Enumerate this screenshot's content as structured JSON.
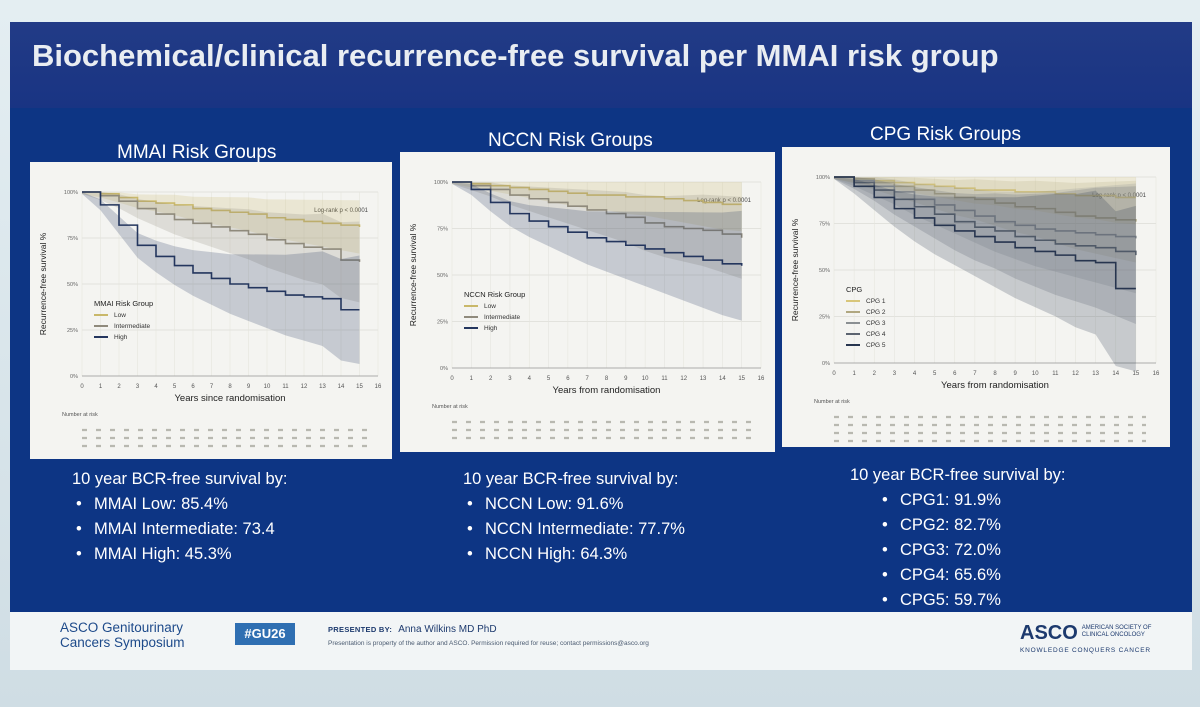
{
  "title": "Biochemical/clinical recurrence-free survival per MMAI risk group",
  "panels": [
    {
      "heading": "MMAI Risk Groups",
      "summary_head": "10 year BCR-free survival by:",
      "summary_items": [
        "MMAI Low: 85.4%",
        "MMAI Intermediate: 73.4",
        "MMAI High: 45.3%"
      ]
    },
    {
      "heading": "NCCN Risk Groups",
      "summary_head": "10 year BCR-free survival by:",
      "summary_items": [
        "NCCN Low: 91.6%",
        "NCCN Intermediate: 77.7%",
        "NCCN High: 64.3%"
      ]
    },
    {
      "heading": "CPG Risk Groups",
      "summary_head": "10 year BCR-free survival by:",
      "summary_items": [
        "CPG1: 91.9%",
        "CPG2: 82.7%",
        "CPG3: 72.0%",
        "CPG4: 65.6%",
        "CPG5: 59.7%"
      ]
    }
  ],
  "chart_data": [
    {
      "type": "line",
      "xlabel": "Years since randomisation",
      "ylabel": "Recurrence-free survival %",
      "xlim": [
        0,
        16
      ],
      "ylim": [
        0,
        100
      ],
      "x_ticks": [
        0,
        1,
        2,
        3,
        4,
        5,
        6,
        7,
        8,
        9,
        10,
        11,
        12,
        13,
        14,
        15,
        16
      ],
      "y_ticks": [
        0,
        25,
        50,
        75,
        100
      ],
      "y_tick_labels": [
        "0%",
        "25%",
        "50%",
        "75%",
        "100%"
      ],
      "annotation": "Log-rank p < 0.0001",
      "legend_title": "MMAI Risk Group",
      "legend_position": "left",
      "risk_table_label": "Number at risk",
      "confidence_bands": true,
      "series": [
        {
          "name": "Low",
          "color": "#c9b86a",
          "x": [
            0,
            1,
            2,
            3,
            4,
            5,
            6,
            7,
            8,
            9,
            10,
            11,
            12,
            13,
            14,
            15
          ],
          "y": [
            100,
            99,
            97,
            95,
            94,
            93,
            91,
            90,
            89,
            88,
            86,
            85,
            84,
            83,
            82,
            81
          ]
        },
        {
          "name": "Intermediate",
          "color": "#8f8a7c",
          "x": [
            0,
            1,
            2,
            3,
            4,
            5,
            6,
            7,
            8,
            9,
            10,
            11,
            12,
            13,
            14,
            15
          ],
          "y": [
            100,
            98,
            95,
            91,
            88,
            85,
            83,
            81,
            79,
            77,
            74,
            72,
            70,
            69,
            63,
            62
          ]
        },
        {
          "name": "High",
          "color": "#24365e",
          "x": [
            0,
            1,
            2,
            3,
            4,
            5,
            6,
            7,
            8,
            9,
            10,
            11,
            12,
            13,
            14,
            15
          ],
          "y": [
            100,
            93,
            82,
            71,
            65,
            60,
            56,
            53,
            50,
            48,
            46,
            44,
            43,
            42,
            36,
            36
          ]
        }
      ]
    },
    {
      "type": "line",
      "xlabel": "Years from randomisation",
      "ylabel": "Recurrence-free survival %",
      "xlim": [
        0,
        16
      ],
      "ylim": [
        0,
        100
      ],
      "x_ticks": [
        0,
        1,
        2,
        3,
        4,
        5,
        6,
        7,
        8,
        9,
        10,
        11,
        12,
        13,
        14,
        15,
        16
      ],
      "y_ticks": [
        0,
        25,
        50,
        75,
        100
      ],
      "y_tick_labels": [
        "0%",
        "25%",
        "50%",
        "75%",
        "100%"
      ],
      "annotation": "Log-rank p < 0.0001",
      "legend_title": "NCCN Risk Group",
      "legend_position": "left",
      "risk_table_label": "Number at risk",
      "confidence_bands": true,
      "series": [
        {
          "name": "Low",
          "color": "#c9b86a",
          "x": [
            0,
            1,
            2,
            3,
            4,
            5,
            6,
            7,
            8,
            9,
            10,
            11,
            12,
            13,
            14,
            15
          ],
          "y": [
            100,
            99,
            98,
            97,
            96,
            95,
            94,
            93,
            93,
            92,
            92,
            91,
            90,
            89,
            88,
            88
          ]
        },
        {
          "name": "Intermediate",
          "color": "#8f8a7c",
          "x": [
            0,
            1,
            2,
            3,
            4,
            5,
            6,
            7,
            8,
            9,
            10,
            11,
            12,
            13,
            14,
            15
          ],
          "y": [
            100,
            98,
            96,
            93,
            91,
            89,
            87,
            85,
            83,
            81,
            78,
            76,
            75,
            74,
            72,
            70
          ]
        },
        {
          "name": "High",
          "color": "#24365e",
          "x": [
            0,
            1,
            2,
            3,
            4,
            5,
            6,
            7,
            8,
            9,
            10,
            11,
            12,
            13,
            14,
            15
          ],
          "y": [
            100,
            96,
            89,
            83,
            79,
            76,
            73,
            70,
            68,
            66,
            64,
            62,
            60,
            58,
            56,
            55
          ]
        }
      ]
    },
    {
      "type": "line",
      "xlabel": "Years from randomisation",
      "ylabel": "Recurrence-free survival %",
      "xlim": [
        0,
        16
      ],
      "ylim": [
        0,
        100
      ],
      "x_ticks": [
        0,
        1,
        2,
        3,
        4,
        5,
        6,
        7,
        8,
        9,
        10,
        11,
        12,
        13,
        14,
        15,
        16
      ],
      "y_ticks": [
        0,
        25,
        50,
        75,
        100
      ],
      "y_tick_labels": [
        "0%",
        "25%",
        "50%",
        "75%",
        "100%"
      ],
      "annotation": "Log-rank p < 0.0001",
      "legend_title": "CPG",
      "legend_position": "left",
      "risk_table_label": "Number at risk",
      "confidence_bands": true,
      "series": [
        {
          "name": "CPG 1",
          "color": "#d8c67a",
          "x": [
            0,
            1,
            2,
            3,
            4,
            5,
            6,
            7,
            8,
            9,
            10,
            11,
            12,
            13,
            14,
            15
          ],
          "y": [
            100,
            99,
            98,
            97,
            96,
            95,
            94,
            93,
            93,
            92,
            92,
            91,
            90,
            90,
            89,
            89
          ]
        },
        {
          "name": "CPG 2",
          "color": "#b0a780",
          "x": [
            0,
            1,
            2,
            3,
            4,
            5,
            6,
            7,
            8,
            9,
            10,
            11,
            12,
            13,
            14,
            15
          ],
          "y": [
            100,
            99,
            97,
            95,
            93,
            91,
            89,
            88,
            86,
            84,
            83,
            81,
            79,
            78,
            77,
            76
          ]
        },
        {
          "name": "CPG 3",
          "color": "#8a8f92",
          "x": [
            0,
            1,
            2,
            3,
            4,
            5,
            6,
            7,
            8,
            9,
            10,
            11,
            12,
            13,
            14,
            15
          ],
          "y": [
            100,
            98,
            95,
            92,
            88,
            85,
            82,
            79,
            76,
            74,
            72,
            71,
            70,
            69,
            68,
            67
          ]
        },
        {
          "name": "CPG 4",
          "color": "#5c6470",
          "x": [
            0,
            1,
            2,
            3,
            4,
            5,
            6,
            7,
            8,
            9,
            10,
            11,
            12,
            13,
            14,
            15
          ],
          "y": [
            100,
            97,
            93,
            88,
            84,
            80,
            76,
            73,
            71,
            68,
            66,
            64,
            63,
            62,
            60,
            58
          ]
        },
        {
          "name": "CPG 5",
          "color": "#27354f",
          "x": [
            0,
            1,
            2,
            3,
            4,
            5,
            6,
            7,
            8,
            9,
            10,
            11,
            12,
            13,
            14,
            15
          ],
          "y": [
            100,
            95,
            89,
            83,
            78,
            74,
            71,
            68,
            65,
            62,
            60,
            58,
            55,
            54,
            40,
            40
          ]
        }
      ]
    }
  ],
  "footer": {
    "org_line1": "ASCO Genitourinary",
    "org_line2": "Cancers Symposium",
    "hashtag": "#GU26",
    "presented_label": "PRESENTED BY:",
    "presenter": "Anna Wilkins MD PhD",
    "notice": "Presentation is property of the author and ASCO. Permission required for reuse; contact permissions@asco.org",
    "logo_word": "ASCO",
    "logo_small": "AMERICAN SOCIETY OF CLINICAL ONCOLOGY",
    "logo_motto": "KNOWLEDGE CONQUERS CANCER"
  }
}
